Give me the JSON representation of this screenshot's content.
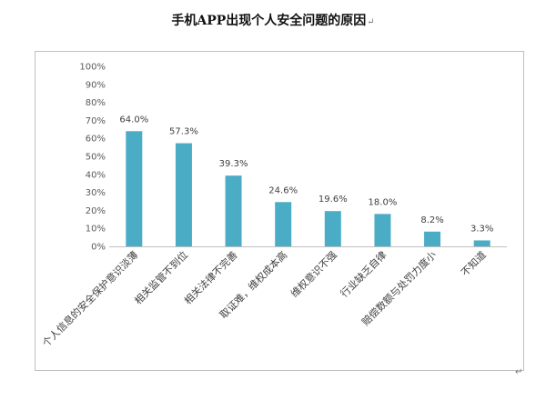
{
  "title": "手机APP出现个人安全问题的原因",
  "title_mark": "↵",
  "corner_mark": "↵",
  "colors": {
    "bar": "#4bacc6",
    "axis": "#bfbfbf"
  },
  "chart_data": {
    "type": "bar",
    "title": "手机APP出现个人安全问题的原因",
    "categories": [
      "个人信息的安全保护意识淡薄",
      "相关监管不到位",
      "相关法律不完善",
      "取证难，维权成本高",
      "维权意识不强",
      "行业缺乏自律",
      "赔偿数额与处罚力度小",
      "不知道"
    ],
    "values": [
      64.0,
      57.3,
      39.3,
      24.6,
      19.6,
      18.0,
      8.2,
      3.3
    ],
    "value_labels": [
      "64.0%",
      "57.3%",
      "39.3%",
      "24.6%",
      "19.6%",
      "18.0%",
      "8.2%",
      "3.3%"
    ],
    "ylim": [
      0,
      100
    ],
    "yticks": [
      "0%",
      "10%",
      "20%",
      "30%",
      "40%",
      "50%",
      "60%",
      "70%",
      "80%",
      "90%",
      "100%"
    ],
    "grid": false,
    "legend": "none"
  }
}
